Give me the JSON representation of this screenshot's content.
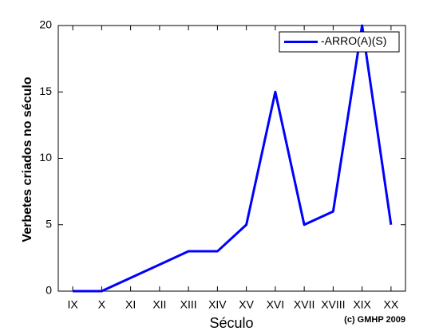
{
  "chart_data": {
    "type": "line",
    "y_label": "Verbetes criados no século",
    "x_label": "Século",
    "annotation": "(c) GMHP 2009",
    "categories": [
      "IX",
      "X",
      "XI",
      "XII",
      "XIII",
      "XIV",
      "XV",
      "XVI",
      "XVII",
      "XVIII",
      "XIX",
      "XX"
    ],
    "series": [
      {
        "name": "-ARRO(A)(S)",
        "color": "#0000ff",
        "values": [
          0,
          0,
          1,
          2,
          3,
          3,
          5,
          15,
          5,
          6,
          20,
          5
        ]
      }
    ],
    "ylim": [
      0,
      20
    ],
    "yticks": [
      0,
      5,
      10,
      15,
      20
    ],
    "legend": "upper right"
  }
}
